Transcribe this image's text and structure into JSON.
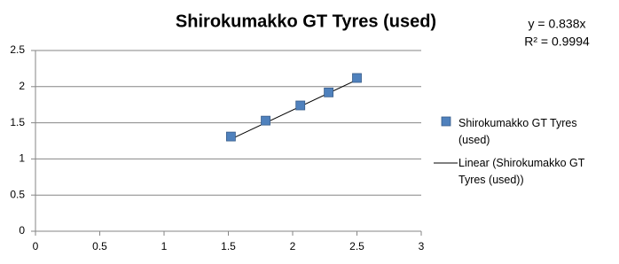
{
  "chart_data": {
    "type": "scatter",
    "title": "Shirokumakko GT Tyres (used)",
    "series": [
      {
        "name": "Shirokumakko GT Tyres (used)",
        "color": "#4f81bd",
        "x": [
          1.52,
          1.79,
          2.06,
          2.28,
          2.5
        ],
        "values": [
          1.31,
          1.53,
          1.74,
          1.92,
          2.12
        ]
      }
    ],
    "trendline": {
      "name": "Linear (Shirokumakko GT Tyres (used))",
      "slope": 0.838,
      "color": "#000000",
      "equation": "y = 0.838x",
      "r_squared_label": "R² = 0.9994"
    },
    "xlim": [
      0,
      3
    ],
    "xticks": [
      0,
      0.5,
      1,
      1.5,
      2,
      2.5,
      3
    ],
    "ylim": [
      0,
      2.5
    ],
    "yticks": [
      0,
      0.5,
      1,
      1.5,
      2,
      2.5
    ],
    "grid": true,
    "legend": "right"
  }
}
